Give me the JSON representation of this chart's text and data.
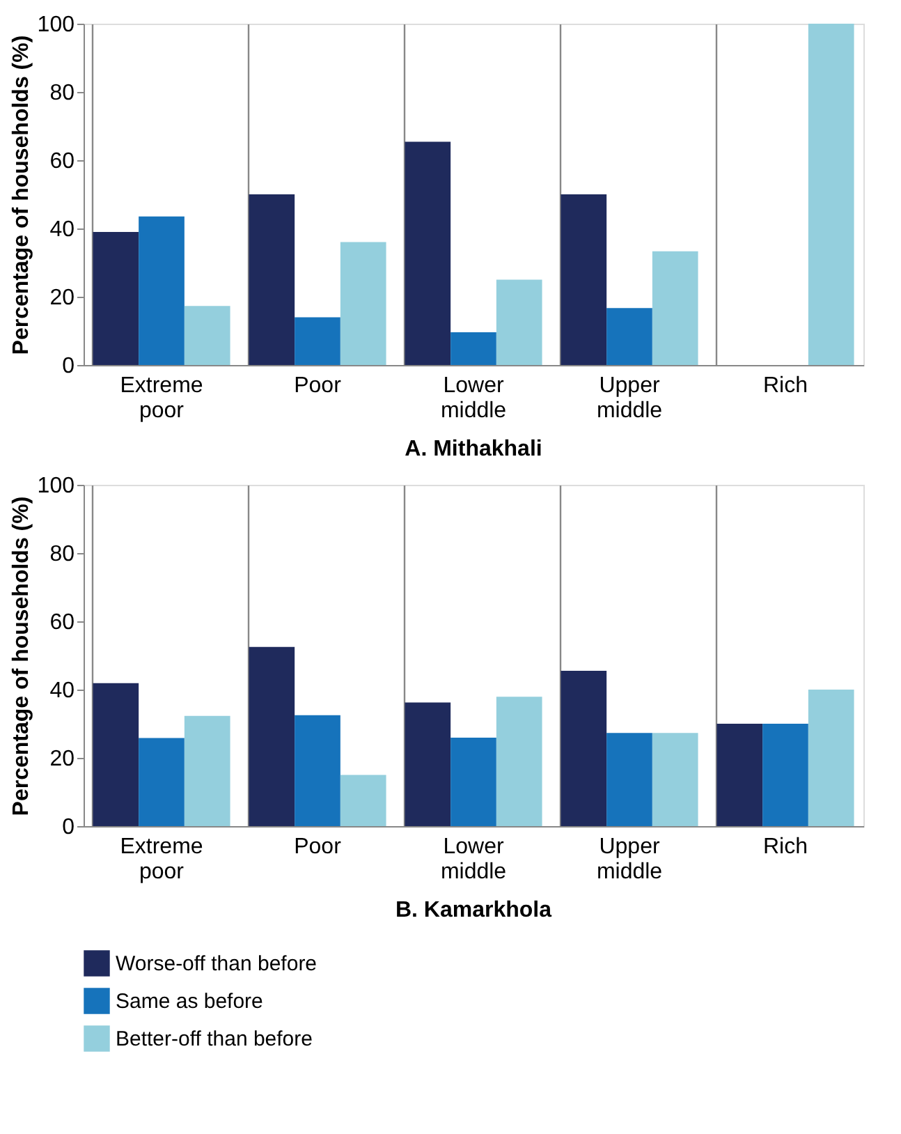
{
  "chart_data": [
    {
      "type": "bar",
      "title": "A. Mithakhali",
      "ylabel": "Percentage of households (%)",
      "categories": [
        "Extreme poor",
        "Poor",
        "Lower middle",
        "Upper middle",
        "Rich"
      ],
      "ylim": [
        0,
        100
      ],
      "yticks": [
        0,
        20,
        40,
        60,
        80,
        100
      ],
      "grid": "x",
      "legend": "bottom",
      "series": [
        {
          "name": "Worse-off than before",
          "color": "#1f2a5c",
          "values": [
            39,
            50,
            65.4,
            50,
            0
          ]
        },
        {
          "name": "Same as before",
          "color": "#1673bb",
          "values": [
            43.5,
            14,
            9.6,
            16.7,
            0
          ]
        },
        {
          "name": "Better-off than before",
          "color": "#94cfdd",
          "values": [
            17.3,
            36,
            25,
            33.3,
            100
          ]
        }
      ]
    },
    {
      "type": "bar",
      "title": "B. Kamarkhola",
      "ylabel": "Percentage of households (%)",
      "categories": [
        "Extreme poor",
        "Poor",
        "Lower middle",
        "Upper middle",
        "Rich"
      ],
      "ylim": [
        0,
        100
      ],
      "yticks": [
        0,
        20,
        40,
        60,
        80,
        100
      ],
      "grid": "x",
      "legend": "bottom",
      "series": [
        {
          "name": "Worse-off than before",
          "color": "#1f2a5c",
          "values": [
            41.9,
            52.5,
            36.2,
            45.5,
            30
          ]
        },
        {
          "name": "Same as before",
          "color": "#1673bb",
          "values": [
            25.8,
            32.5,
            25.9,
            27.3,
            30
          ]
        },
        {
          "name": "Better-off than before",
          "color": "#94cfdd",
          "values": [
            32.3,
            15,
            37.9,
            27.3,
            40
          ]
        }
      ]
    }
  ]
}
